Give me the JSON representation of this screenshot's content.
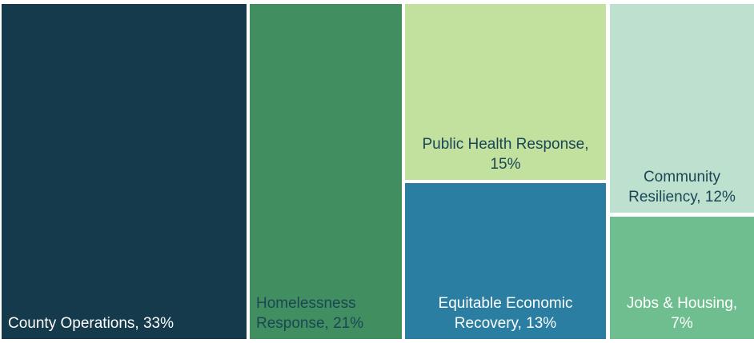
{
  "chart": {
    "tiles": [
      {
        "id": "county-operations",
        "label": "County Operations, 33%",
        "name": "County Operations",
        "value": 33,
        "color": "#143A4C",
        "text_color": "#FFFFFF"
      },
      {
        "id": "homelessness-response",
        "label": "Homelessness Response, 21%",
        "name": "Homelessness Response",
        "value": 21,
        "color": "#418F60",
        "text_color": "#1A4655"
      },
      {
        "id": "public-health-response",
        "label": "Public Health Response, 15%",
        "name": "Public Health Response",
        "value": 15,
        "color": "#C2E09E",
        "text_color": "#1A4655"
      },
      {
        "id": "equitable-economic-recovery",
        "label": "Equitable Economic Recovery, 13%",
        "name": "Equitable Economic Recovery",
        "value": 13,
        "color": "#2A7EA1",
        "text_color": "#FFFFFF"
      },
      {
        "id": "community-resiliency",
        "label": "Community Resiliency, 12%",
        "name": "Community Resiliency",
        "value": 12,
        "color": "#BEE0CE",
        "text_color": "#1A4655"
      },
      {
        "id": "jobs-housing",
        "label": "Jobs & Housing, 7%",
        "name": "Jobs & Housing",
        "value": 7,
        "color": "#6FBE8F",
        "text_color": "#FFFFFF"
      }
    ],
    "background_color": "#FFFFFF"
  },
  "chart_data": {
    "type": "treemap",
    "title": "",
    "categories": [
      "County Operations",
      "Homelessness Response",
      "Public Health Response",
      "Equitable Economic Recovery",
      "Community Resiliency",
      "Jobs & Housing"
    ],
    "values": [
      33,
      21,
      15,
      13,
      12,
      7
    ],
    "unit": "%",
    "data_labels": "category name with percent, inside tile, bottom-anchored",
    "legend_position": "none",
    "colors": [
      "#143A4C",
      "#418F60",
      "#C2E09E",
      "#2A7EA1",
      "#BEE0CE",
      "#6FBE8F"
    ],
    "layout_hint": "single-row treemap: columns left-to-right by descending value; 3rd column split top 15% / bottom 13%; 4th column split top 12% / bottom 7%"
  }
}
